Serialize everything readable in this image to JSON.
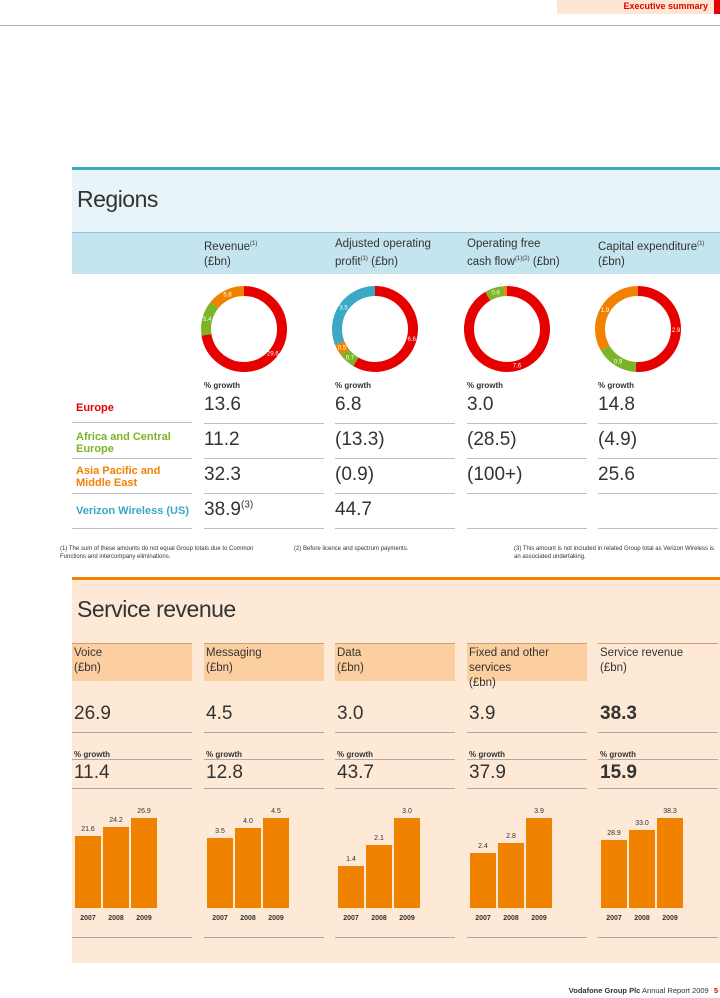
{
  "header": {
    "section": "Executive summary"
  },
  "regions": {
    "title": "Regions",
    "columns": [
      {
        "label": "Revenue",
        "sup": "(1)",
        "unit": "(£bn)"
      },
      {
        "label": "Adjusted operating",
        "line2": "profit",
        "sup": "(1)",
        "unit": "(£bn)"
      },
      {
        "label": "Operating free",
        "line2": "cash flow",
        "sup": "(1)(2)",
        "unit": "(£bn)"
      },
      {
        "label": "Capital expenditure",
        "sup": "(1)",
        "unit": "(£bn)"
      }
    ],
    "growth_label": "% growth",
    "rows": [
      {
        "label": "Europe",
        "color": "#e60000",
        "values": [
          "13.6",
          "6.8",
          "3.0",
          "14.8"
        ]
      },
      {
        "label": "Africa and Central Europe",
        "color": "#7cb327",
        "values": [
          "11.2",
          "(13.3)",
          "(28.5)",
          "(4.9)"
        ]
      },
      {
        "label": "Asia Pacific and Middle East",
        "color": "#f08200",
        "values": [
          "32.3",
          "(0.9)",
          "(100+)",
          "25.6"
        ]
      },
      {
        "label": "Verizon Wireless (US)",
        "color": "#39a9c5",
        "values": [
          "38.9",
          "44.7",
          "",
          ""
        ],
        "sup": "(3)"
      }
    ],
    "donuts": [
      {
        "segments": [
          {
            "label": "29.6",
            "value": 29.6,
            "color": "#e60000"
          },
          {
            "label": "5.4",
            "value": 5.4,
            "color": "#7cb327"
          },
          {
            "label": "5.8",
            "value": 5.8,
            "color": "#f08200"
          }
        ]
      },
      {
        "segments": [
          {
            "label": "6.6",
            "value": 6.6,
            "color": "#e60000"
          },
          {
            "label": "0.7",
            "value": 0.7,
            "color": "#7cb327"
          },
          {
            "label": "0.5",
            "value": 0.5,
            "color": "#f08200"
          },
          {
            "label": "3.5",
            "value": 3.5,
            "color": "#39a9c5"
          }
        ]
      },
      {
        "segments": [
          {
            "label": "7.6",
            "value": 7.6,
            "color": "#e60000"
          },
          {
            "label": "0.6",
            "value": 0.6,
            "color": "#7cb327"
          },
          {
            "label": "(0.1)",
            "value": 0.1,
            "color": "#f08200"
          }
        ]
      },
      {
        "segments": [
          {
            "label": "2.9",
            "value": 2.9,
            "color": "#e60000"
          },
          {
            "label": "0.9",
            "value": 0.9,
            "color": "#7cb327"
          },
          {
            "label": "1.9",
            "value": 1.9,
            "color": "#f08200"
          }
        ]
      }
    ],
    "footnotes": [
      "(1)  The sum of these amounts do not equal Group totals due to Common Functions and intercompany eliminations.",
      "(2)  Before licence and spectrum payments.",
      "(3)  This amount is not included in related Group total as Verizon Wireless is an associated undertaking."
    ]
  },
  "service": {
    "title": "Service revenue",
    "growth_label": "% growth",
    "columns": [
      {
        "label": "Voice",
        "unit": "(£bn)",
        "value": "26.9",
        "growth": "11.4"
      },
      {
        "label": "Messaging",
        "unit": "(£bn)",
        "value": "4.5",
        "growth": "12.8"
      },
      {
        "label": "Data",
        "unit": "(£bn)",
        "value": "3.0",
        "growth": "43.7"
      },
      {
        "label": "Fixed and other services",
        "unit": "(£bn)",
        "value": "3.9",
        "growth": "37.9"
      },
      {
        "label": "Service revenue",
        "unit": "(£bn)",
        "value": "38.3",
        "growth": "15.9"
      }
    ]
  },
  "chart_data": [
    {
      "type": "bar",
      "categories": [
        "2007",
        "2008",
        "2009"
      ],
      "values": [
        21.6,
        24.2,
        26.9
      ]
    },
    {
      "type": "bar",
      "categories": [
        "2007",
        "2008",
        "2009"
      ],
      "values": [
        3.5,
        4.0,
        4.5
      ]
    },
    {
      "type": "bar",
      "categories": [
        "2007",
        "2008",
        "2009"
      ],
      "values": [
        1.4,
        2.1,
        3.0
      ]
    },
    {
      "type": "bar",
      "categories": [
        "2007",
        "2008",
        "2009"
      ],
      "values": [
        2.4,
        2.8,
        3.9
      ]
    },
    {
      "type": "bar",
      "categories": [
        "2007",
        "2008",
        "2009"
      ],
      "values": [
        28.9,
        33.0,
        38.3
      ]
    }
  ],
  "footer": {
    "company": "Vodafone Group Plc",
    "report": "Annual Report 2009",
    "page": "5"
  }
}
